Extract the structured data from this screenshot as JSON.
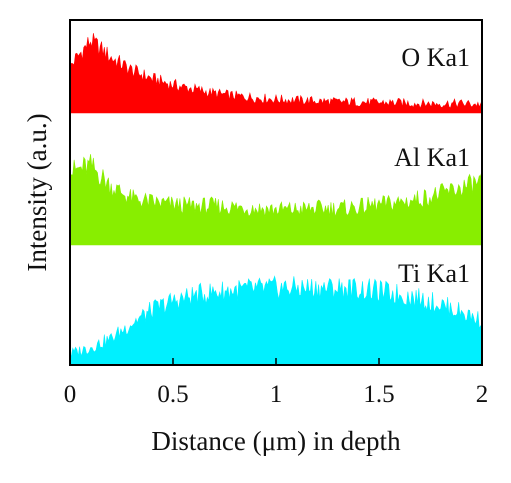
{
  "chart_data": {
    "type": "area",
    "title": "",
    "xlabel": "Distance (μm) in depth",
    "ylabel": "Intensity (a.u.)",
    "xlim": [
      0,
      2
    ],
    "x_ticks": [
      "0",
      "0.5",
      "1",
      "1.5",
      "2"
    ],
    "grid": false,
    "stacked_panels": true,
    "x": [
      0.0,
      0.1,
      0.2,
      0.3,
      0.4,
      0.5,
      0.6,
      0.7,
      0.8,
      0.9,
      1.0,
      1.1,
      1.2,
      1.3,
      1.4,
      1.5,
      1.6,
      1.7,
      1.8,
      1.9,
      2.0
    ],
    "series": [
      {
        "name": "O Ka1",
        "color": "#ff0000",
        "values": [
          0.55,
          0.85,
          0.65,
          0.5,
          0.4,
          0.33,
          0.28,
          0.23,
          0.2,
          0.18,
          0.16,
          0.15,
          0.14,
          0.13,
          0.13,
          0.12,
          0.12,
          0.11,
          0.11,
          0.11,
          0.1
        ]
      },
      {
        "name": "Al Ka1",
        "color": "#88ee00",
        "values": [
          0.6,
          0.65,
          0.48,
          0.38,
          0.35,
          0.33,
          0.32,
          0.32,
          0.31,
          0.3,
          0.29,
          0.29,
          0.3,
          0.3,
          0.31,
          0.33,
          0.35,
          0.38,
          0.42,
          0.47,
          0.52
        ]
      },
      {
        "name": "Ti Ka1",
        "color": "#00f0ff",
        "values": [
          0.1,
          0.16,
          0.24,
          0.38,
          0.5,
          0.58,
          0.63,
          0.66,
          0.68,
          0.69,
          0.7,
          0.7,
          0.7,
          0.7,
          0.69,
          0.67,
          0.64,
          0.6,
          0.55,
          0.48,
          0.4
        ]
      }
    ]
  }
}
